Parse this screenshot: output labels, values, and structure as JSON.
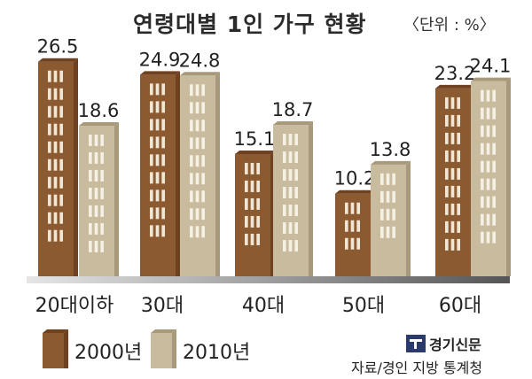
{
  "chart_data": {
    "type": "bar",
    "title": "연령대별 1인 가구 현황",
    "unit": "〈단위 : %〉",
    "categories": [
      "20대이하",
      "30대",
      "40대",
      "50대",
      "60대"
    ],
    "series": [
      {
        "name": "2000년",
        "values": [
          26.5,
          24.9,
          15.1,
          10.2,
          23.2
        ],
        "value_labels": [
          "26.5",
          "24.9",
          "15.1",
          "10.2",
          "23.2"
        ]
      },
      {
        "name": "2010년",
        "values": [
          18.6,
          24.8,
          18.7,
          13.8,
          24.1
        ],
        "value_labels": [
          "18.6",
          "24.8",
          "18.7",
          "13.8",
          "24.1"
        ]
      }
    ],
    "ylim": [
      0,
      28
    ],
    "colors": {
      "2000년": "#8b5a30",
      "2010년": "#c9bb9d"
    }
  },
  "footer": {
    "brand": "경기신문",
    "source": "자료/경인 지방 통계청"
  }
}
